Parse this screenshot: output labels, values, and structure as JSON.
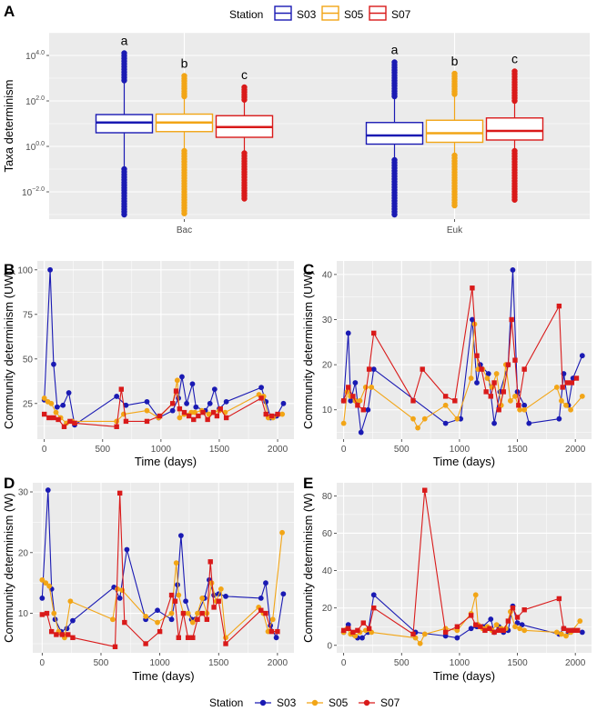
{
  "colors": {
    "S03": "#1a1ab3",
    "S05": "#f2a516",
    "S07": "#d91a1a",
    "panel_bg": "#ebebeb",
    "grid": "#ffffff"
  },
  "legend_top": {
    "title": "Station",
    "items": [
      "S03",
      "S05",
      "S07"
    ]
  },
  "legend_bottom": {
    "title": "Station",
    "items": [
      "S03",
      "S05",
      "S07"
    ]
  },
  "chart_data": [
    {
      "panel": "A",
      "type": "box",
      "ylabel": "Taxa determinism",
      "yscale": "log10",
      "ylim": [
        -3.2,
        5.0
      ],
      "y_ticks": [
        {
          "exp": -2.0,
          "base": "10",
          "sup": "−2.0"
        },
        {
          "exp": 0.0,
          "base": "10",
          "sup": "0.0"
        },
        {
          "exp": 2.0,
          "base": "10",
          "sup": "2.0"
        },
        {
          "exp": 4.0,
          "base": "10",
          "sup": "4.0"
        }
      ],
      "categories": [
        "Bac",
        "Euk"
      ],
      "groups": [
        {
          "category": "Bac",
          "boxes": [
            {
              "station": "S03",
              "q1": 0.6,
              "median": 1.05,
              "q3": 1.4,
              "low_end": -1.0,
              "high_end": 2.9,
              "min": -3.0,
              "max": 4.1,
              "letter": "a"
            },
            {
              "station": "S05",
              "q1": 0.65,
              "median": 1.05,
              "q3": 1.42,
              "low_end": -0.2,
              "high_end": 2.2,
              "min": -2.95,
              "max": 3.1,
              "letter": "b"
            },
            {
              "station": "S07",
              "q1": 0.4,
              "median": 0.85,
              "q3": 1.35,
              "low_end": -0.3,
              "high_end": 2.05,
              "min": -2.3,
              "max": 2.6,
              "letter": "c"
            }
          ]
        },
        {
          "category": "Euk",
          "boxes": [
            {
              "station": "S03",
              "q1": 0.1,
              "median": 0.48,
              "q3": 1.05,
              "low_end": -0.6,
              "high_end": 2.2,
              "min": -3.0,
              "max": 3.7,
              "letter": "a"
            },
            {
              "station": "S05",
              "q1": 0.18,
              "median": 0.58,
              "q3": 1.15,
              "low_end": -0.4,
              "high_end": 2.3,
              "min": -2.6,
              "max": 3.2,
              "letter": "b"
            },
            {
              "station": "S07",
              "q1": 0.28,
              "median": 0.68,
              "q3": 1.25,
              "low_end": -0.2,
              "high_end": 2.0,
              "min": -2.35,
              "max": 3.3,
              "letter": "c"
            }
          ]
        }
      ]
    },
    {
      "panel": "B",
      "type": "line",
      "xlabel": "Time (days)",
      "ylabel": "Community determinism (UW)",
      "xlim": [
        -60,
        2140
      ],
      "ylim": [
        5,
        105
      ],
      "x_ticks": [
        0,
        500,
        1000,
        1500,
        2000
      ],
      "y_ticks": [
        25,
        50,
        75,
        100
      ],
      "series": [
        {
          "name": "S03",
          "x": [
            0,
            50,
            80,
            110,
            160,
            210,
            260,
            620,
            700,
            880,
            980,
            1100,
            1150,
            1180,
            1220,
            1270,
            1300,
            1380,
            1420,
            1460,
            1500,
            1560,
            1860,
            1900,
            1940,
            1990,
            2050
          ],
          "y": [
            27,
            100,
            47,
            23,
            24,
            31,
            13,
            29,
            24,
            26,
            17,
            21,
            28,
            40,
            25,
            36,
            23,
            21,
            25,
            33,
            22,
            26,
            34,
            26,
            17,
            18,
            25
          ]
        },
        {
          "name": "S05",
          "x": [
            0,
            30,
            60,
            100,
            140,
            190,
            240,
            620,
            680,
            880,
            980,
            1100,
            1140,
            1160,
            1200,
            1260,
            1290,
            1350,
            1410,
            1450,
            1500,
            1550,
            1840,
            1880,
            1920,
            1960,
            2040
          ],
          "y": [
            28,
            26,
            25,
            20,
            17,
            14,
            15,
            15,
            19,
            21,
            17,
            25,
            38,
            17,
            19,
            20,
            20,
            21,
            19,
            20,
            21,
            20,
            30,
            29,
            17,
            17,
            19
          ]
        },
        {
          "name": "S07",
          "x": [
            0,
            40,
            80,
            120,
            170,
            220,
            260,
            620,
            660,
            700,
            880,
            990,
            1100,
            1130,
            1160,
            1200,
            1240,
            1280,
            1320,
            1360,
            1400,
            1450,
            1480,
            1510,
            1560,
            1860,
            1900,
            1950,
            2000
          ],
          "y": [
            19,
            17,
            17,
            16,
            12,
            15,
            14,
            12,
            33,
            15,
            15,
            18,
            25,
            32,
            22,
            20,
            18,
            16,
            18,
            20,
            16,
            20,
            18,
            22,
            17,
            28,
            19,
            18,
            19
          ]
        }
      ]
    },
    {
      "panel": "C",
      "type": "line",
      "xlabel": "Time (days)",
      "ylabel": "Community determinism (UW)",
      "xlim": [
        -60,
        2140
      ],
      "ylim": [
        3.5,
        43
      ],
      "x_ticks": [
        0,
        500,
        1000,
        1500,
        2000
      ],
      "y_ticks": [
        10,
        20,
        30,
        40
      ],
      "series": [
        {
          "name": "S03",
          "x": [
            0,
            40,
            60,
            100,
            150,
            210,
            260,
            880,
            1010,
            1110,
            1150,
            1180,
            1250,
            1300,
            1350,
            1420,
            1460,
            1500,
            1560,
            1600,
            1860,
            1900,
            1940,
            1980,
            2060
          ],
          "y": [
            12,
            27,
            12,
            16,
            5,
            10,
            19,
            7,
            8,
            30,
            16,
            20,
            18,
            7,
            14,
            20,
            41,
            14,
            11,
            7,
            8,
            18,
            11,
            17,
            22
          ]
        },
        {
          "name": "S05",
          "x": [
            0,
            30,
            60,
            100,
            140,
            190,
            240,
            600,
            640,
            700,
            880,
            980,
            1100,
            1130,
            1160,
            1200,
            1240,
            1280,
            1320,
            1360,
            1400,
            1440,
            1480,
            1520,
            1560,
            1840,
            1880,
            1920,
            1960,
            2060
          ],
          "y": [
            7,
            14,
            13,
            12,
            12,
            15,
            15,
            8,
            6,
            8,
            11,
            8,
            17,
            29,
            19,
            19,
            17,
            15,
            18,
            11,
            20,
            12,
            13,
            10,
            10,
            15,
            12,
            11,
            10,
            13
          ]
        },
        {
          "name": "S07",
          "x": [
            0,
            40,
            80,
            120,
            170,
            220,
            260,
            600,
            680,
            880,
            960,
            1110,
            1150,
            1190,
            1230,
            1270,
            1300,
            1340,
            1380,
            1420,
            1450,
            1480,
            1510,
            1560,
            1860,
            1890,
            1930,
            1970,
            2010
          ],
          "y": [
            12,
            15,
            13,
            11,
            10,
            19,
            27,
            12,
            19,
            13,
            12,
            37,
            22,
            19,
            14,
            13,
            16,
            10,
            14,
            20,
            30,
            21,
            11,
            19,
            33,
            15,
            16,
            16,
            17
          ]
        }
      ]
    },
    {
      "panel": "D",
      "type": "line",
      "xlabel": "Time (days)",
      "ylabel": "Community determinism (W)",
      "xlim": [
        -80,
        2140
      ],
      "ylim": [
        3.5,
        31.5
      ],
      "x_ticks": [
        0,
        500,
        1000,
        1500,
        2000
      ],
      "y_ticks": [
        10,
        20,
        30
      ],
      "series": [
        {
          "name": "S03",
          "x": [
            0,
            50,
            80,
            110,
            160,
            210,
            260,
            610,
            660,
            720,
            880,
            980,
            1100,
            1150,
            1180,
            1220,
            1270,
            1300,
            1380,
            1420,
            1460,
            1500,
            1560,
            1860,
            1900,
            1940,
            1990,
            2050
          ],
          "y": [
            12.5,
            30.3,
            14,
            9,
            7,
            7.5,
            8.8,
            14.3,
            12.5,
            20.5,
            9,
            10.5,
            9,
            14.7,
            22.8,
            12,
            9,
            9,
            12.5,
            15.5,
            13,
            13.2,
            12.8,
            12.5,
            15,
            8,
            6,
            13.2
          ]
        },
        {
          "name": "S05",
          "x": [
            0,
            30,
            60,
            100,
            140,
            190,
            240,
            600,
            640,
            680,
            880,
            980,
            1100,
            1140,
            1160,
            1200,
            1240,
            1280,
            1320,
            1360,
            1400,
            1440,
            1480,
            1520,
            1560,
            1840,
            1880,
            1920,
            1960,
            2040
          ],
          "y": [
            15.5,
            15,
            14.5,
            10,
            7,
            6,
            12,
            9,
            14,
            13.8,
            9.5,
            8.5,
            10,
            18.3,
            13,
            10,
            10,
            8.5,
            10,
            12.5,
            10,
            15,
            12,
            14,
            6,
            11,
            10,
            7,
            9,
            23.3
          ]
        },
        {
          "name": "S07",
          "x": [
            0,
            40,
            80,
            120,
            170,
            220,
            260,
            620,
            660,
            700,
            880,
            1000,
            1100,
            1130,
            1160,
            1200,
            1240,
            1280,
            1320,
            1360,
            1400,
            1430,
            1460,
            1500,
            1560,
            1860,
            1900,
            1950,
            2000
          ],
          "y": [
            9.8,
            10,
            7,
            6.5,
            6.5,
            6.5,
            6,
            4.5,
            29.8,
            8.5,
            5,
            7,
            13,
            12,
            6,
            10,
            6,
            6,
            9,
            10,
            9,
            18.5,
            11,
            12,
            5,
            10.5,
            10,
            7,
            7
          ]
        }
      ]
    },
    {
      "panel": "E",
      "type": "line",
      "xlabel": "Time (days)",
      "ylabel": "Community determinism (W)",
      "xlim": [
        -60,
        2140
      ],
      "ylim": [
        -4,
        87
      ],
      "x_ticks": [
        0,
        500,
        1000,
        1500,
        2000
      ],
      "y_ticks": [
        0,
        20,
        40,
        60,
        80
      ],
      "series": [
        {
          "name": "S03",
          "x": [
            0,
            40,
            80,
            120,
            160,
            210,
            260,
            620,
            880,
            980,
            1100,
            1150,
            1200,
            1270,
            1300,
            1340,
            1380,
            1420,
            1460,
            1500,
            1540,
            1860,
            1900,
            1940,
            1980,
            2060
          ],
          "y": [
            7,
            11,
            6,
            4,
            4,
            7,
            27,
            7,
            5,
            4,
            9,
            10,
            10,
            14,
            7,
            10,
            7,
            8,
            21,
            12,
            11,
            6,
            9,
            7,
            8,
            7
          ]
        },
        {
          "name": "S05",
          "x": [
            0,
            30,
            60,
            100,
            140,
            190,
            240,
            620,
            660,
            700,
            880,
            980,
            1100,
            1140,
            1160,
            1200,
            1240,
            1280,
            1320,
            1360,
            1400,
            1440,
            1480,
            1520,
            1560,
            1840,
            1880,
            1920,
            1960,
            2040
          ],
          "y": [
            7,
            9,
            6,
            5,
            7,
            8,
            7,
            4,
            1,
            6,
            9,
            8,
            17,
            27,
            11,
            9,
            10,
            8,
            11,
            9,
            9,
            18,
            10,
            9,
            8,
            7,
            6,
            5,
            7,
            13
          ]
        },
        {
          "name": "S07",
          "x": [
            0,
            40,
            80,
            120,
            170,
            220,
            260,
            600,
            700,
            880,
            980,
            1100,
            1140,
            1180,
            1220,
            1260,
            1300,
            1340,
            1380,
            1420,
            1460,
            1500,
            1560,
            1860,
            1900,
            1940,
            1980,
            2020
          ],
          "y": [
            8,
            9,
            7,
            8,
            12,
            9,
            20,
            6,
            83,
            7,
            10,
            16,
            11,
            10,
            8,
            9,
            7,
            8,
            8,
            13,
            20,
            15,
            19,
            25,
            9,
            8,
            8,
            8
          ]
        }
      ]
    }
  ]
}
